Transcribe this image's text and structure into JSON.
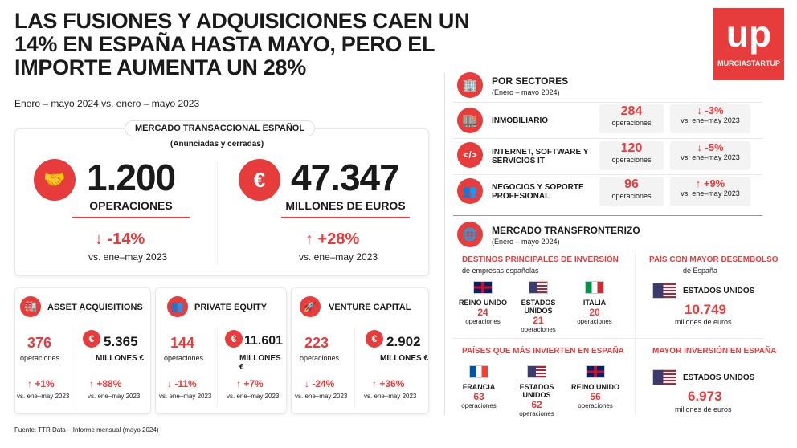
{
  "header": {
    "title": "LAS FUSIONES Y ADQUISICIONES CAEN UN 14% EN ESPAÑA HASTA MAYO, PERO EL IMPORTE AUMENTA UN 28%",
    "subtitle": "Enero – mayo 2024 vs. enero – mayo 2023",
    "logo_text": "MURCIASTARTUP",
    "logo_mark": "up"
  },
  "mercado": {
    "pill": "MERCADO TRANSACCIONAL ESPAÑOL",
    "sub": "(Anunciadas y cerradas)",
    "ops_value": "1.200",
    "ops_label": "OPERACIONES",
    "ops_change": "↓ -14%",
    "ops_vs": "vs. ene–may 2023",
    "eur_value": "47.347",
    "eur_label": "MILLONES DE EUROS",
    "eur_change": "↑ +28%",
    "eur_vs": "vs. ene–may 2023"
  },
  "cards": [
    {
      "title": "ASSET ACQUISITIONS",
      "ops": "376",
      "ops_label": "operaciones",
      "money": "5.365",
      "money_label": "MILLONES €",
      "ops_change": "↑ +1%",
      "money_change": "↑ +88%",
      "vs": "vs. ene–may 2023"
    },
    {
      "title": "PRIVATE EQUITY",
      "ops": "144",
      "ops_label": "operaciones",
      "money": "11.601",
      "money_label": "MILLONES €",
      "ops_change": "↓ -11%",
      "money_change": "↑ +7%",
      "vs": "vs. ene–may 2023"
    },
    {
      "title": "VENTURE CAPITAL",
      "ops": "223",
      "ops_label": "operaciones",
      "money": "2.902",
      "money_label": "MILLONES €",
      "ops_change": "↓ -24%",
      "money_change": "↑ +36%",
      "vs": "vs. ene–may 2023"
    }
  ],
  "sectores": {
    "title": "POR SECTORES",
    "sub": "(Enero – mayo 2024)",
    "rows": [
      {
        "name": "INMOBILIARIO",
        "value": "284",
        "label": "operaciones",
        "change": "↓ -3%",
        "vs": "vs. ene–may 2023"
      },
      {
        "name": "INTERNET, SOFTWARE Y SERVICIOS IT",
        "value": "120",
        "label": "operaciones",
        "change": "↓ -5%",
        "vs": "vs. ene–may 2023"
      },
      {
        "name": "NEGOCIOS Y SOPORTE PROFESIONAL",
        "value": "96",
        "label": "operaciones",
        "change": "↑ +9%",
        "vs": "vs. ene–may 2023"
      }
    ]
  },
  "transfronterizo": {
    "title": "MERCADO TRANSFRONTERIZO",
    "sub": "(Enero – mayo 2024)",
    "destinos_title": "DESTINOS PRINCIPALES DE INVERSIÓN",
    "destinos_sub": "de empresas españolas",
    "destinos": [
      {
        "country": "REINO UNIDO",
        "value": "24",
        "label": "operaciones"
      },
      {
        "country": "ESTADOS UNIDOS",
        "value": "21",
        "label": "operaciones"
      },
      {
        "country": "ITALIA",
        "value": "20",
        "label": "operaciones"
      }
    ],
    "pais_title": "PAÍS CON MAYOR DESEMBOLSO",
    "pais_sub": "de España",
    "pais_country": "ESTADOS UNIDOS",
    "pais_value": "10.749",
    "pais_label": "millones de euros",
    "invierten_title": "PAÍSES QUE MÁS INVIERTEN EN ESPAÑA",
    "invierten": [
      {
        "country": "FRANCIA",
        "value": "63",
        "label": "operaciones"
      },
      {
        "country": "ESTADOS UNIDOS",
        "value": "62",
        "label": "operaciones"
      },
      {
        "country": "REINO UNIDO",
        "value": "56",
        "label": "operaciones"
      }
    ],
    "mayor_title": "MAYOR INVERSIÓN EN ESPAÑA",
    "mayor_country": "ESTADOS UNIDOS",
    "mayor_value": "6.973",
    "mayor_label": "millones de euros"
  },
  "footer": {
    "source": "Fuente: TTR Data – Informe mensual (mayo 2024)"
  },
  "colors": {
    "accent": "#e63c3c"
  }
}
